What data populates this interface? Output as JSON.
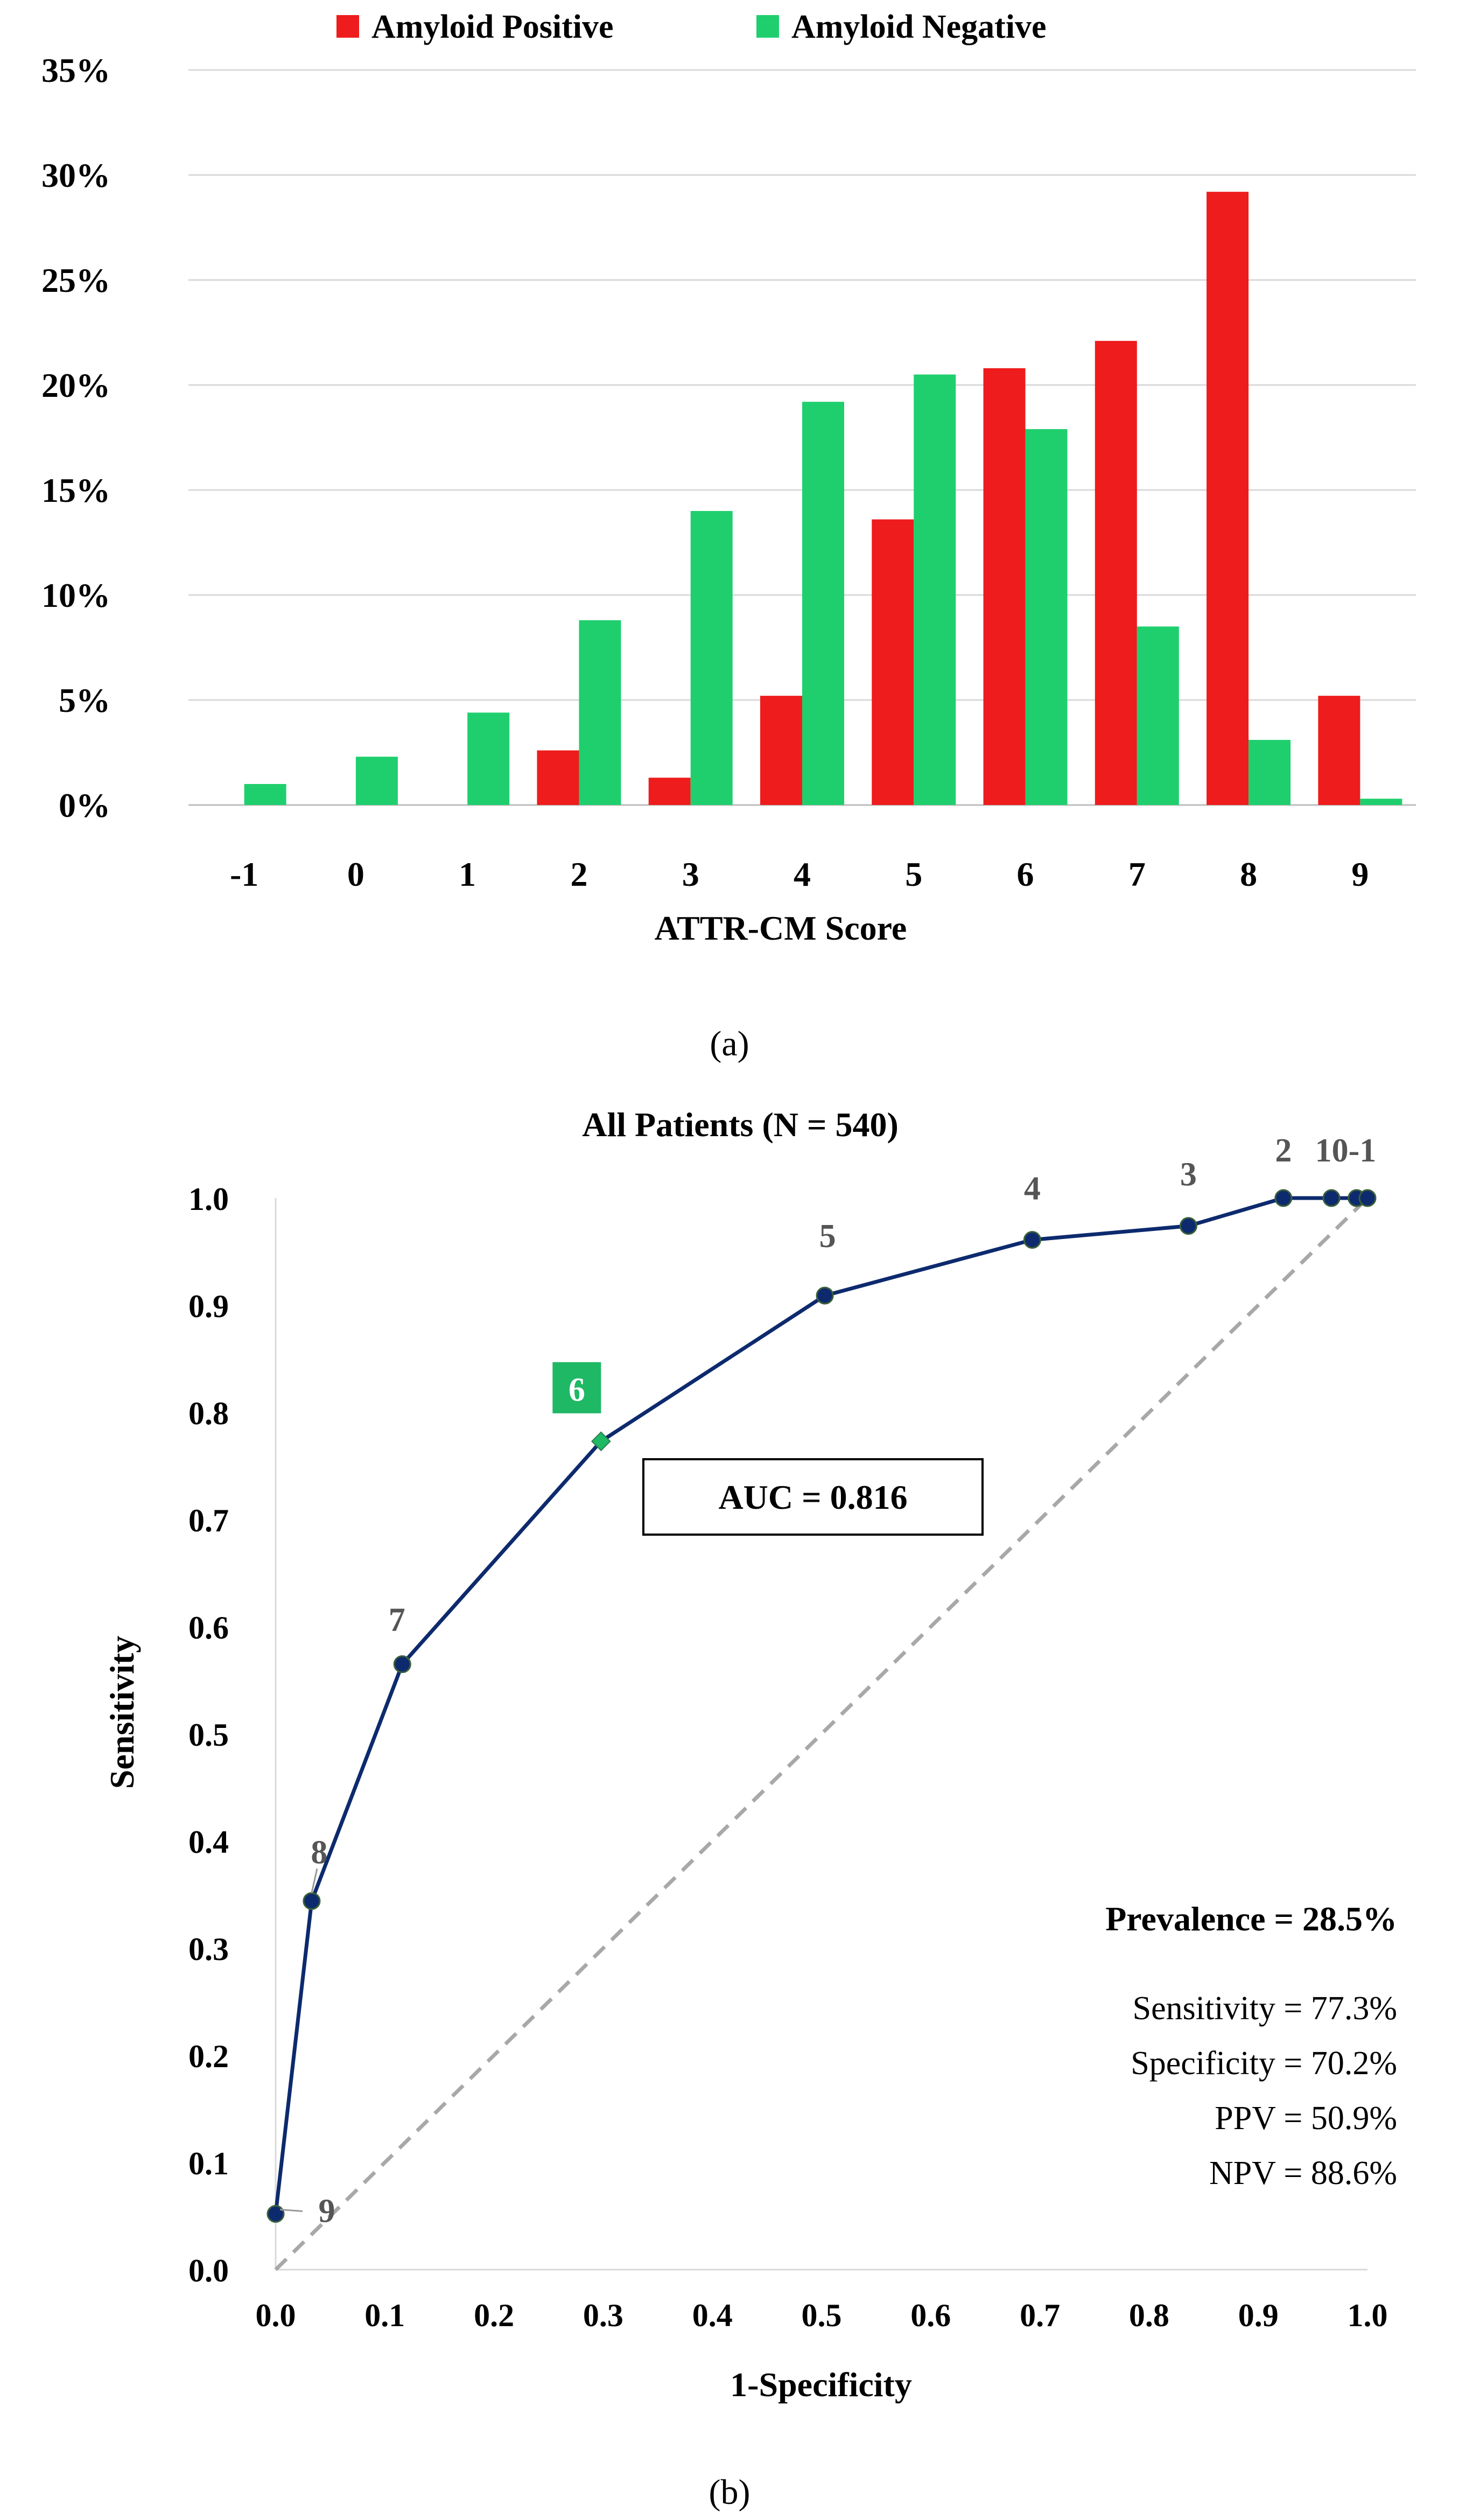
{
  "chart_data": [
    {
      "type": "bar",
      "panel_label": "(a)",
      "title": "",
      "xlabel": "ATTR-CM Score",
      "ylabel": "",
      "categories": [
        "-1",
        "0",
        "1",
        "2",
        "3",
        "4",
        "5",
        "6",
        "7",
        "8",
        "9"
      ],
      "series": [
        {
          "name": "Amyloid Positive",
          "color": "#ee1c1c",
          "values": [
            0,
            0,
            0,
            2.6,
            1.3,
            5.2,
            13.6,
            20.8,
            22.1,
            29.2,
            5.2
          ]
        },
        {
          "name": "Amyloid Negative",
          "color": "#1fcf6e",
          "values": [
            1.0,
            2.3,
            4.4,
            8.8,
            14.0,
            19.2,
            20.5,
            17.9,
            8.5,
            3.1,
            0.3
          ]
        }
      ],
      "ylim": [
        0,
        35
      ],
      "yticks": [
        "0%",
        "5%",
        "10%",
        "15%",
        "20%",
        "25%",
        "30%",
        "35%"
      ],
      "grid": true,
      "legend": "top-center"
    },
    {
      "type": "line",
      "panel_label": "(b)",
      "title": "All Patients (N = 540)",
      "xlabel": "1-Specificity",
      "ylabel": "Sensitivity",
      "xlim": [
        0,
        1
      ],
      "ylim": [
        0,
        1
      ],
      "xticks": [
        "0.0",
        "0.1",
        "0.2",
        "0.3",
        "0.4",
        "0.5",
        "0.6",
        "0.7",
        "0.8",
        "0.9",
        "1.0"
      ],
      "yticks": [
        "0.0",
        "0.1",
        "0.2",
        "0.3",
        "0.4",
        "0.5",
        "0.6",
        "0.7",
        "0.8",
        "0.9",
        "1.0"
      ],
      "series": [
        {
          "line_color": "#0d2a6e",
          "marker_color": "#0d2a6e",
          "highlight_color": "#1fb865",
          "points": [
            {
              "x": 0.0,
              "y": 0.052,
              "label": "9"
            },
            {
              "x": 0.033,
              "y": 0.344,
              "label": "8"
            },
            {
              "x": 0.116,
              "y": 0.565,
              "label": "7"
            },
            {
              "x": 0.298,
              "y": 0.773,
              "label": "6",
              "highlight": true
            },
            {
              "x": 0.503,
              "y": 0.909,
              "label": "5"
            },
            {
              "x": 0.693,
              "y": 0.961,
              "label": "4"
            },
            {
              "x": 0.836,
              "y": 0.974,
              "label": "3"
            },
            {
              "x": 0.923,
              "y": 1.0,
              "label": "2"
            },
            {
              "x": 0.967,
              "y": 1.0,
              "label": ""
            },
            {
              "x": 0.99,
              "y": 1.0,
              "label": ""
            },
            {
              "x": 1.0,
              "y": 1.0,
              "label": ""
            }
          ],
          "extra_label": "10-1"
        }
      ],
      "diagonal": {
        "style": "dashed",
        "color": "#a8a8a8"
      },
      "annotations": {
        "auc": "AUC = 0.816",
        "prevalence": "Prevalence = 28.5%",
        "stats": [
          "Sensitivity = 77.3%",
          "Specificity = 70.2%",
          "PPV = 50.9%",
          "NPV = 88.6%"
        ]
      }
    }
  ]
}
